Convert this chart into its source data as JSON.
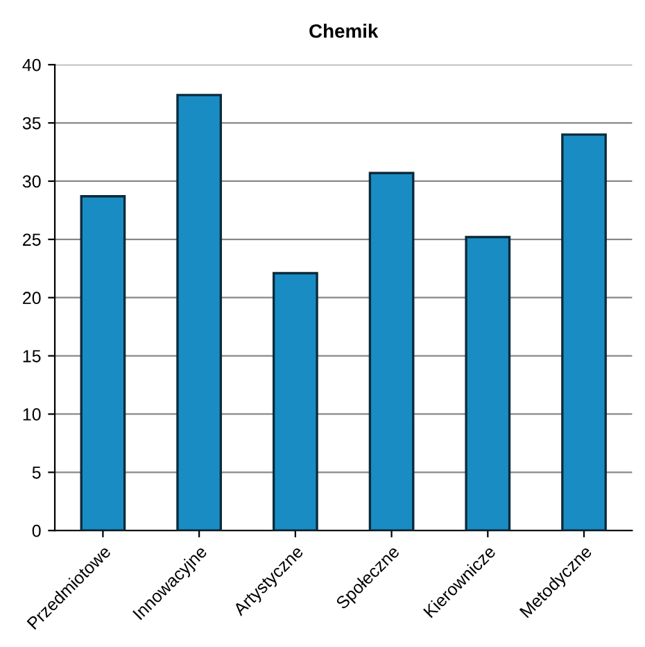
{
  "chart_data": {
    "type": "bar",
    "title": "Chemik",
    "categories": [
      "Przedmiotowe",
      "Innowacyjne",
      "Artystyczne",
      "Społeczne",
      "Kierownicze",
      "Metodyczne"
    ],
    "values": [
      28.7,
      37.4,
      22.1,
      30.7,
      25.2,
      34.0
    ],
    "color": "#1a8cc4",
    "ylim": [
      0,
      40
    ],
    "yticks": [
      0,
      5,
      10,
      15,
      20,
      25,
      30,
      35,
      40
    ],
    "grid": "y"
  }
}
